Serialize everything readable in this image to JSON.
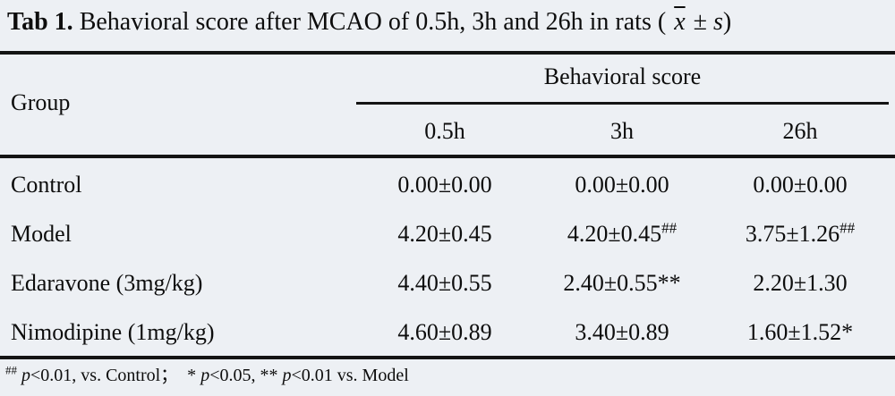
{
  "title": {
    "tag": "Tab 1.",
    "text": " Behavioral score after MCAO of 0.5h, 3h and 26h in rats ( ",
    "xbar": "x",
    "pm": " ± ",
    "s": "s",
    "close": ")"
  },
  "table": {
    "group_header": "Group",
    "span_header": "Behavioral score",
    "columns": [
      "0.5h",
      "3h",
      "26h"
    ],
    "rows": [
      {
        "group": "Control",
        "cells": [
          {
            "value": "0.00±0.00",
            "sup": ""
          },
          {
            "value": "0.00±0.00",
            "sup": ""
          },
          {
            "value": "0.00±0.00",
            "sup": ""
          }
        ]
      },
      {
        "group": "Model",
        "cells": [
          {
            "value": "4.20±0.45",
            "sup": ""
          },
          {
            "value": "4.20±0.45",
            "sup": "##"
          },
          {
            "value": "3.75±1.26",
            "sup": "##"
          }
        ]
      },
      {
        "group": "Edaravone (3mg/kg)",
        "cells": [
          {
            "value": "4.40±0.55",
            "sup": ""
          },
          {
            "value": "2.40±0.55**",
            "sup": ""
          },
          {
            "value": "2.20±1.30",
            "sup": ""
          }
        ]
      },
      {
        "group": "Nimodipine (1mg/kg)",
        "cells": [
          {
            "value": "4.60±0.89",
            "sup": ""
          },
          {
            "value": "3.40±0.89",
            "sup": ""
          },
          {
            "value": "1.60±1.52*",
            "sup": ""
          }
        ]
      }
    ]
  },
  "footnote": {
    "sup1": "##",
    "p1": " p",
    "t1": "<0.01, vs. Control； * ",
    "p2": "p",
    "t2": "<0.05, ** ",
    "p3": "p",
    "t3": "<0.01 vs. Model"
  },
  "colors": {
    "background": "#edf0f4",
    "text": "#0d0d0d",
    "rule": "#141414"
  }
}
